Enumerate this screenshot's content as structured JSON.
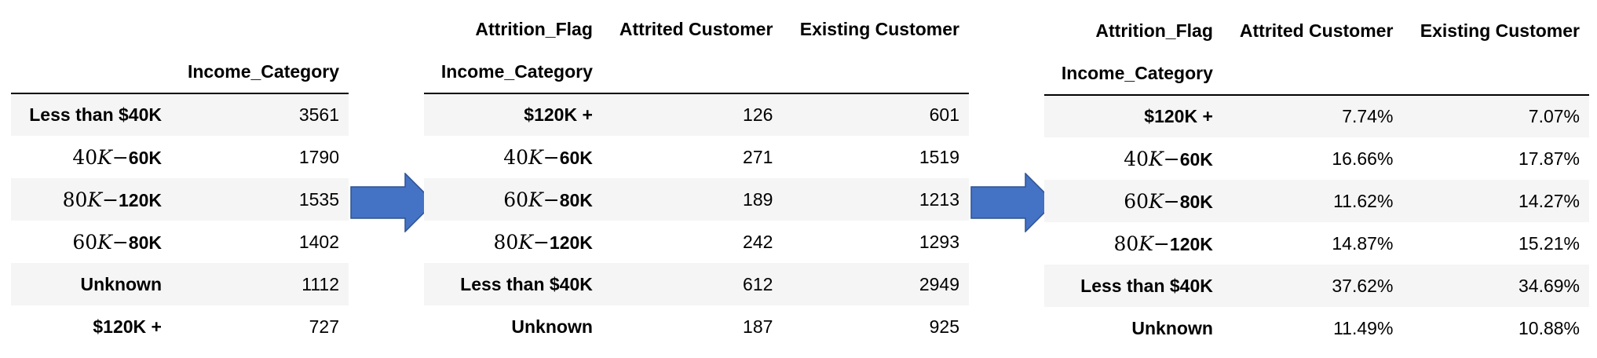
{
  "table1": {
    "index_name": "Income_Category",
    "rows": [
      {
        "label": "Less than $40K",
        "value": "3561"
      },
      {
        "label": "40K-60K",
        "value": "1790"
      },
      {
        "label": "80K-120K",
        "value": "1535"
      },
      {
        "label": "60K-80K",
        "value": "1402"
      },
      {
        "label": "Unknown",
        "value": "1112"
      },
      {
        "label": "$120K +",
        "value": "727"
      }
    ]
  },
  "table2": {
    "columns_name": "Attrition_Flag",
    "columns": [
      "Attrited Customer",
      "Existing Customer"
    ],
    "index_name": "Income_Category",
    "rows": [
      {
        "label": "$120K +",
        "values": [
          "126",
          "601"
        ]
      },
      {
        "label": "40K-60K",
        "values": [
          "271",
          "1519"
        ]
      },
      {
        "label": "60K-80K",
        "values": [
          "189",
          "1213"
        ]
      },
      {
        "label": "80K-120K",
        "values": [
          "242",
          "1293"
        ]
      },
      {
        "label": "Less than $40K",
        "values": [
          "612",
          "2949"
        ]
      },
      {
        "label": "Unknown",
        "values": [
          "187",
          "925"
        ]
      }
    ]
  },
  "table3": {
    "columns_name": "Attrition_Flag",
    "columns": [
      "Attrited Customer",
      "Existing Customer"
    ],
    "index_name": "Income_Category",
    "rows": [
      {
        "label": "$120K +",
        "values": [
          "7.74%",
          "7.07%"
        ]
      },
      {
        "label": "40K-60K",
        "values": [
          "16.66%",
          "17.87%"
        ]
      },
      {
        "label": "60K-80K",
        "values": [
          "11.62%",
          "14.27%"
        ]
      },
      {
        "label": "80K-120K",
        "values": [
          "14.87%",
          "15.21%"
        ]
      },
      {
        "label": "Less than $40K",
        "values": [
          "37.62%",
          "34.69%"
        ]
      },
      {
        "label": "Unknown",
        "values": [
          "11.49%",
          "10.88%"
        ]
      }
    ]
  },
  "colors": {
    "arrow": "#4472c4",
    "arrow_border": "#2f528f",
    "stripe": "#f5f5f5"
  },
  "icons": [
    "right-arrow-icon",
    "right-arrow-icon"
  ]
}
